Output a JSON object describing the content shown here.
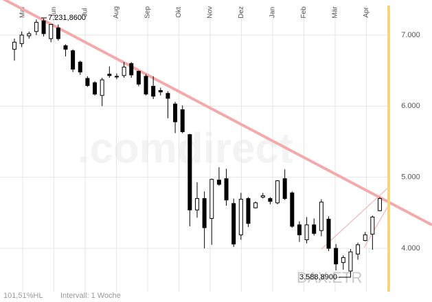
{
  "chart_data": {
    "type": "candlestick",
    "title": "DAX.ETR",
    "watermark": ".comdirect",
    "footer": [
      "101,51%HL",
      "Intervall: 1 Woche"
    ],
    "annotations": [
      "7.231,8600",
      "3.588,8900"
    ],
    "months": [
      "Mai",
      "Jun",
      "Jul",
      "Aug",
      "Sep",
      "Okt",
      "Nov",
      "Dez",
      "Jan",
      "Feb",
      "Mär",
      "Apr"
    ],
    "categories": [
      null,
      null,
      null,
      null,
      null,
      null,
      null,
      null,
      null,
      null,
      null,
      null,
      null,
      null,
      null,
      null,
      null,
      null,
      null,
      null,
      null,
      null,
      null,
      null,
      null,
      null,
      null,
      null,
      null,
      null,
      null,
      null,
      null,
      null,
      null,
      null,
      null,
      null,
      null,
      null,
      null,
      null,
      null,
      null,
      null,
      null,
      null,
      null,
      null,
      null,
      null
    ],
    "open": [
      6800,
      6880,
      6990,
      7050,
      7200,
      6950,
      7100,
      6850,
      6780,
      6620,
      6390,
      6330,
      6150,
      6450,
      6420,
      6430,
      6600,
      6490,
      6420,
      6280,
      6220,
      6180,
      6030,
      5950,
      5600,
      4540,
      4700,
      4420,
      4960,
      4980,
      4630,
      4190,
      4700,
      4570,
      4720,
      4700,
      4640,
      4980,
      4780,
      4330,
      4120,
      4330,
      4250,
      4410,
      4000,
      3800,
      3680,
      3920,
      4110,
      4200,
      4530
    ],
    "high": [
      6950,
      7050,
      7050,
      7220,
      7231.86,
      7150,
      7150,
      6870,
      6800,
      6640,
      6420,
      6350,
      6400,
      6560,
      6460,
      6620,
      6620,
      6500,
      6450,
      6420,
      6260,
      6210,
      6060,
      6010,
      5610,
      4930,
      4800,
      4980,
      5140,
      5120,
      4700,
      4780,
      4720,
      4660,
      4780,
      4720,
      4960,
      5110,
      4800,
      4380,
      4440,
      4420,
      4690,
      4450,
      4060,
      3900,
      3990,
      4080,
      4230,
      4460,
      4720
    ],
    "low": [
      6640,
      6830,
      6950,
      7000,
      6980,
      6900,
      6920,
      6700,
      6480,
      6440,
      6270,
      6150,
      6000,
      6400,
      6380,
      6400,
      6400,
      6280,
      6150,
      6100,
      6150,
      5830,
      5620,
      5620,
      4310,
      4430,
      4000,
      4050,
      4880,
      4600,
      4020,
      4120,
      4300,
      4560,
      4700,
      4620,
      4620,
      4680,
      4290,
      4090,
      4070,
      4180,
      4170,
      3960,
      3690,
      3700,
      3588.89,
      3840,
      4100,
      3980,
      4520
    ],
    "close": [
      6900,
      7000,
      7020,
      7180,
      7020,
      7150,
      6950,
      6800,
      6520,
      6480,
      6290,
      6170,
      6370,
      6430,
      6420,
      6550,
      6440,
      6310,
      6170,
      6140,
      6200,
      6110,
      5780,
      5640,
      4540,
      4700,
      4290,
      4970,
      4900,
      4680,
      4060,
      4690,
      4350,
      4640,
      4740,
      4660,
      4950,
      4700,
      4310,
      4190,
      4330,
      4210,
      4650,
      4000,
      3780,
      3870,
      3950,
      4050,
      4190,
      4440,
      4700
    ],
    "ylim": [
      3390,
      7445
    ],
    "yticks": [
      {
        "value": 4000,
        "label": "4.000"
      },
      {
        "value": 5000,
        "label": "5.000"
      },
      {
        "value": 6000,
        "label": "6.000"
      },
      {
        "value": 7000,
        "label": "7.000"
      }
    ],
    "grid": true
  }
}
